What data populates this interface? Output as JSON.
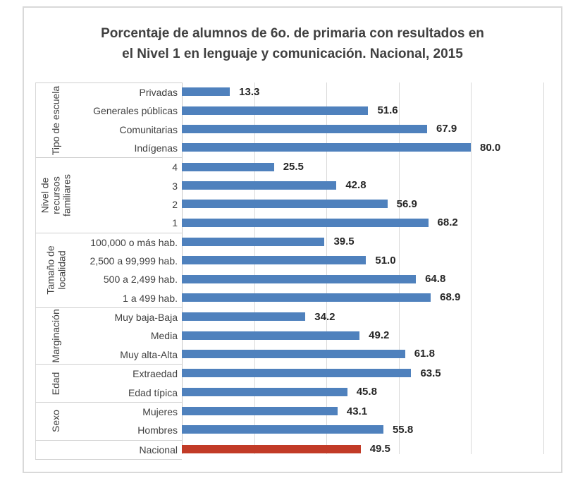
{
  "figure": {
    "title_line1": "Porcentaje de alumnos de 6o. de primaria con resultados en",
    "title_line2": "el Nivel 1 en lenguaje y comunicación. Nacional, 2015"
  },
  "chart_data": {
    "type": "bar",
    "orientation": "horizontal",
    "title": "Porcentaje de alumnos de 6o. de primaria con resultados en el Nivel 1 en lenguaje y comunicación. Nacional, 2015",
    "xlim": [
      0,
      100
    ],
    "gridline_interval": 20,
    "grid": true,
    "legend": false,
    "value_label_decimals": 1,
    "colors": {
      "bar": "#4f81bd",
      "highlight": "#c23b27",
      "gridline": "#d9d9d9",
      "axis_line": "#c9c9c9",
      "separator": "#cfcfcf",
      "title_text": "#404040",
      "label_text": "#404040",
      "value_text": "#262626"
    },
    "groups": [
      {
        "name": "Tipo de escuela",
        "items": [
          {
            "label": "Privadas",
            "value": 13.3
          },
          {
            "label": "Generales públicas",
            "value": 51.6
          },
          {
            "label": "Comunitarias",
            "value": 67.9
          },
          {
            "label": "Indígenas",
            "value": 80.0
          }
        ]
      },
      {
        "name": "Nivel de recursos familiares",
        "items": [
          {
            "label": "4",
            "value": 25.5
          },
          {
            "label": "3",
            "value": 42.8
          },
          {
            "label": "2",
            "value": 56.9
          },
          {
            "label": "1",
            "value": 68.2
          }
        ]
      },
      {
        "name": "Tamaño de localidad",
        "items": [
          {
            "label": "100,000 o más hab.",
            "value": 39.5
          },
          {
            "label": "2,500 a 99,999 hab.",
            "value": 51.0
          },
          {
            "label": "500 a 2,499 hab.",
            "value": 64.8
          },
          {
            "label": "1 a 499 hab.",
            "value": 68.9
          }
        ]
      },
      {
        "name": "Marginación",
        "items": [
          {
            "label": "Muy baja-Baja",
            "value": 34.2
          },
          {
            "label": "Media",
            "value": 49.2
          },
          {
            "label": "Muy alta-Alta",
            "value": 61.8
          }
        ]
      },
      {
        "name": "Edad",
        "items": [
          {
            "label": "Extraedad",
            "value": 63.5
          },
          {
            "label": "Edad típica",
            "value": 45.8
          }
        ]
      },
      {
        "name": "Sexo",
        "items": [
          {
            "label": "Mujeres",
            "value": 43.1
          },
          {
            "label": "Hombres",
            "value": 55.8
          }
        ]
      },
      {
        "name": "",
        "items": [
          {
            "label": "Nacional",
            "value": 49.5,
            "highlight": true
          }
        ]
      }
    ]
  }
}
